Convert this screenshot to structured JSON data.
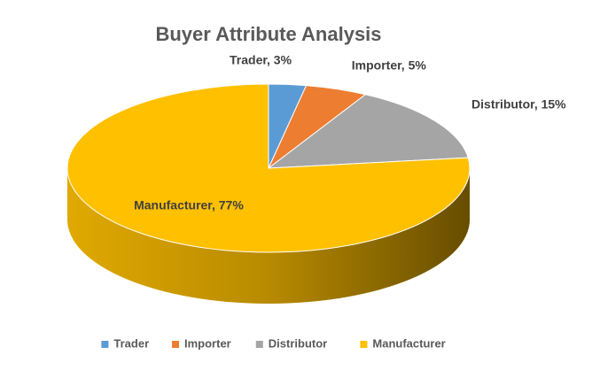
{
  "chart_data": {
    "type": "pie",
    "title": "Buyer Attribute Analysis",
    "categories": [
      "Trader",
      "Importer",
      "Distributor",
      "Manufacturer"
    ],
    "values": [
      3,
      5,
      15,
      77
    ],
    "value_labels": [
      "Trader, 3%",
      "Importer, 5%",
      "Distributor, 15%",
      "Manufacturer, 77%"
    ],
    "colors": [
      "#5b9bd5",
      "#ed7d31",
      "#a5a5a5",
      "#ffc000"
    ],
    "legend": "bottom"
  }
}
